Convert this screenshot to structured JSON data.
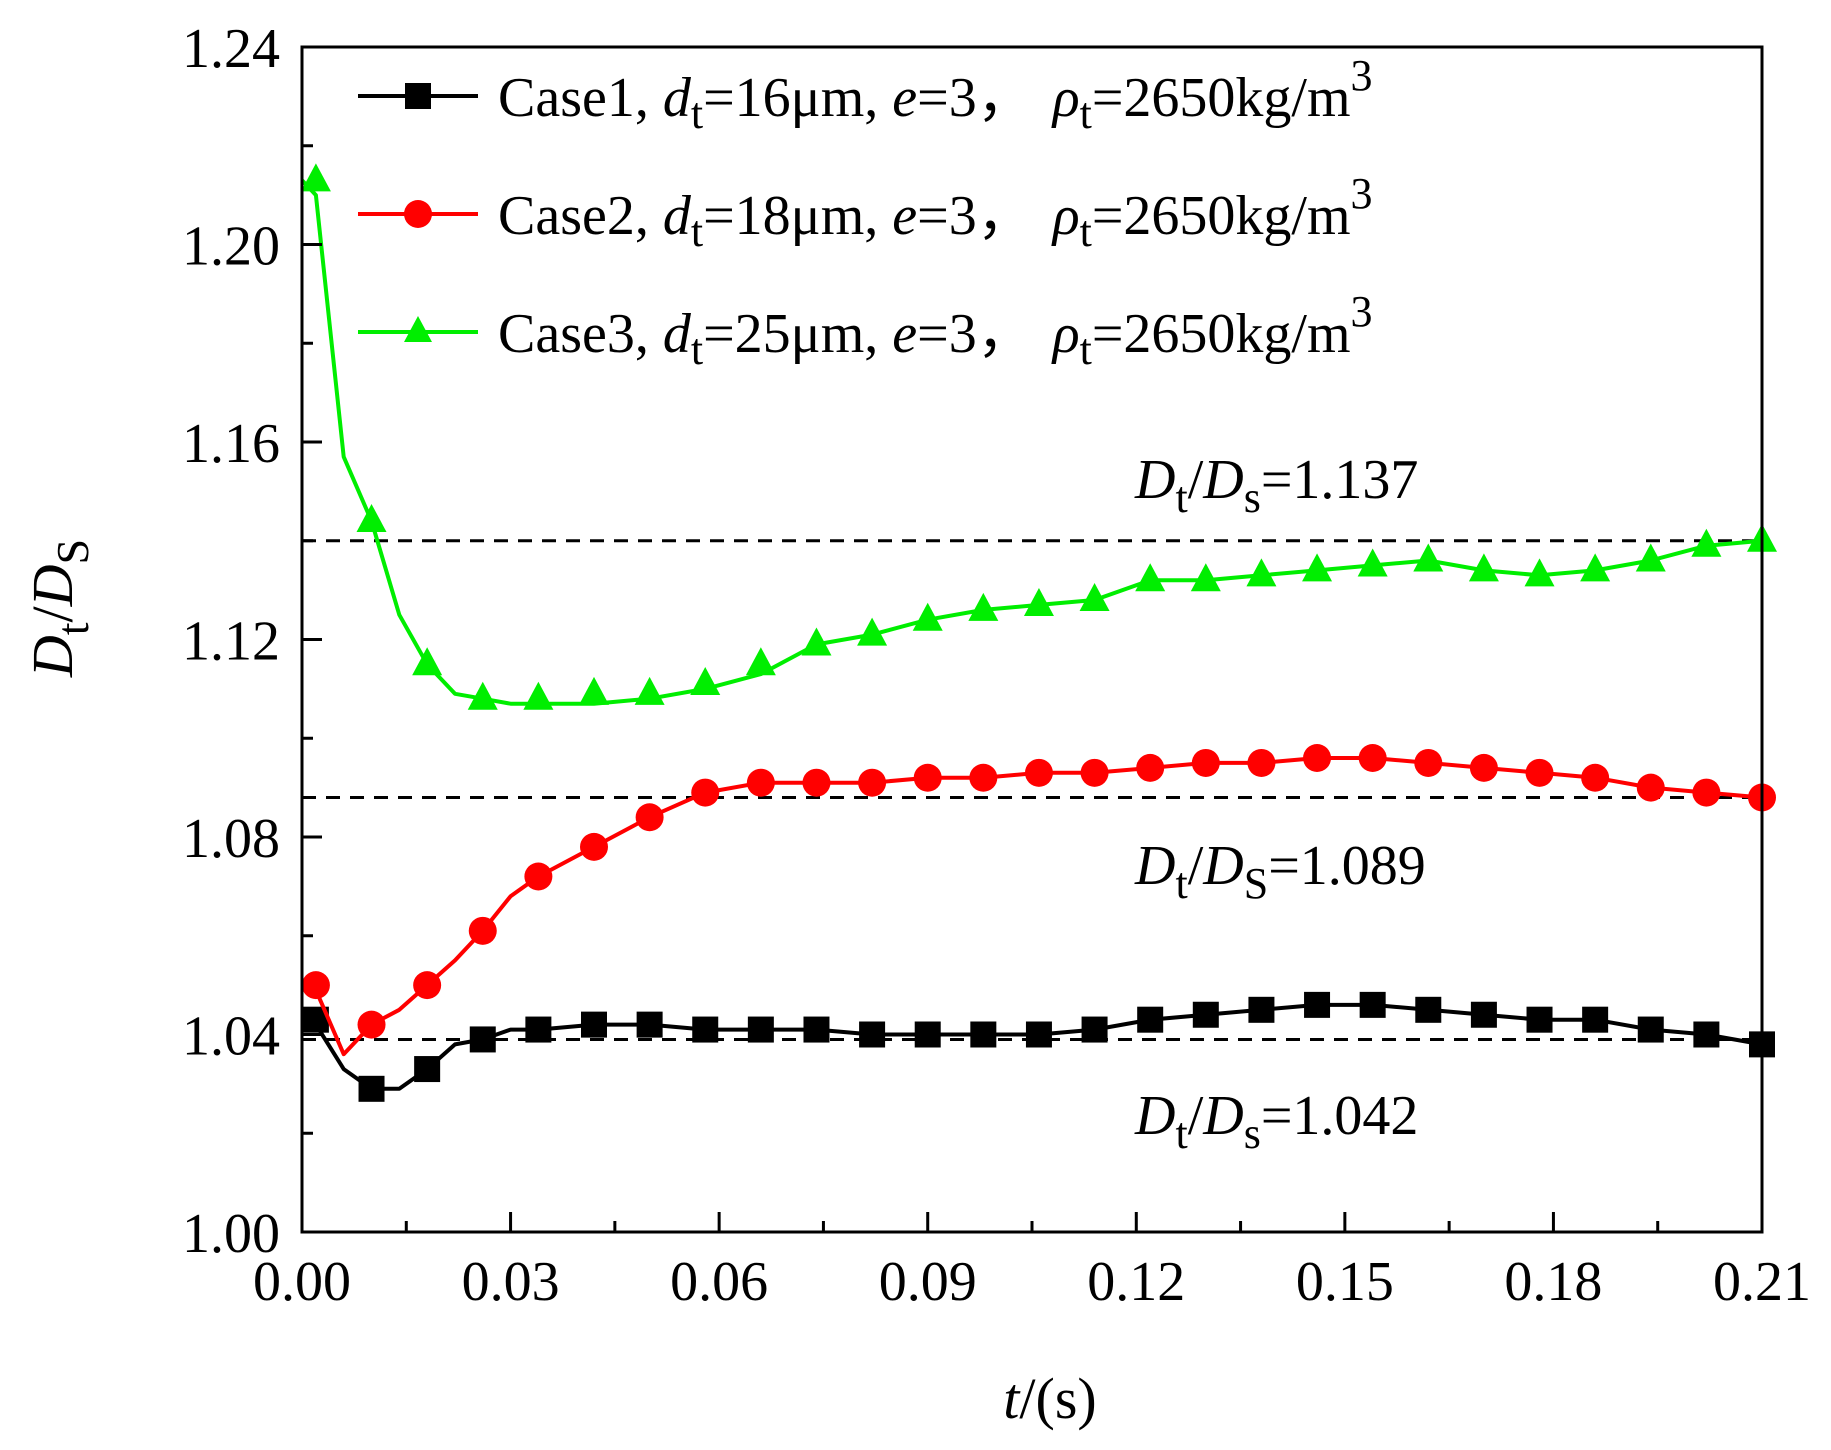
{
  "chart_data": {
    "type": "line",
    "title": "",
    "xlabel": {
      "var": "t",
      "rest": "/(s)"
    },
    "ylabel": {
      "main": "D",
      "sub": "t",
      "slash": "/",
      "main2": "D",
      "sub2": "S"
    },
    "xlim": [
      0.0,
      0.21
    ],
    "ylim": [
      1.0,
      1.24
    ],
    "xticks": [
      "0.00",
      "0.03",
      "0.06",
      "0.09",
      "0.12",
      "0.15",
      "0.18",
      "0.21"
    ],
    "yticks": [
      "1.00",
      "1.04",
      "1.08",
      "1.12",
      "1.16",
      "1.20",
      "1.24"
    ],
    "legend_position": "top",
    "series": [
      {
        "name": "Case1",
        "legend": {
          "case": "Case1, ",
          "d": "d",
          "dsub": "t",
          "dval": "=16μm, ",
          "e": "e",
          "eval": "=3，",
          "rho": "ρ",
          "rhosub": "t",
          "rhoval": "=2650kg/m",
          "sup": "3"
        },
        "color": "#000000",
        "marker": "square",
        "x": [
          0.002,
          0.01,
          0.018,
          0.026,
          0.034,
          0.042,
          0.05,
          0.058,
          0.066,
          0.074,
          0.082,
          0.09,
          0.098,
          0.106,
          0.114,
          0.122,
          0.13,
          0.138,
          0.146,
          0.154,
          0.162,
          0.17,
          0.178,
          0.186,
          0.194,
          0.202,
          0.21
        ],
        "values": [
          1.043,
          1.029,
          1.033,
          1.039,
          1.041,
          1.042,
          1.042,
          1.041,
          1.041,
          1.041,
          1.04,
          1.04,
          1.04,
          1.04,
          1.041,
          1.043,
          1.044,
          1.045,
          1.046,
          1.046,
          1.045,
          1.044,
          1.043,
          1.043,
          1.041,
          1.04,
          1.038
        ],
        "line_x": [
          0.0,
          0.002,
          0.006,
          0.01,
          0.014,
          0.018,
          0.022,
          0.026,
          0.03,
          0.034,
          0.042,
          0.05,
          0.058,
          0.066,
          0.074,
          0.082,
          0.09,
          0.098,
          0.106,
          0.114,
          0.122,
          0.13,
          0.138,
          0.146,
          0.154,
          0.162,
          0.17,
          0.178,
          0.186,
          0.194,
          0.202,
          0.21
        ],
        "line_y": [
          1.043,
          1.042,
          1.033,
          1.029,
          1.029,
          1.033,
          1.038,
          1.039,
          1.041,
          1.041,
          1.042,
          1.042,
          1.041,
          1.041,
          1.041,
          1.04,
          1.04,
          1.04,
          1.04,
          1.041,
          1.043,
          1.044,
          1.045,
          1.046,
          1.046,
          1.045,
          1.044,
          1.043,
          1.043,
          1.041,
          1.04,
          1.038
        ]
      },
      {
        "name": "Case2",
        "legend": {
          "case": "Case2, ",
          "d": "d",
          "dsub": "t",
          "dval": "=18μm, ",
          "e": "e",
          "eval": "=3，",
          "rho": "ρ",
          "rhosub": "t",
          "rhoval": "=2650kg/m",
          "sup": "3"
        },
        "color": "#ff0000",
        "marker": "circle",
        "x": [
          0.002,
          0.01,
          0.018,
          0.026,
          0.034,
          0.042,
          0.05,
          0.058,
          0.066,
          0.074,
          0.082,
          0.09,
          0.098,
          0.106,
          0.114,
          0.122,
          0.13,
          0.138,
          0.146,
          0.154,
          0.162,
          0.17,
          0.178,
          0.186,
          0.194,
          0.202,
          0.21
        ],
        "values": [
          1.05,
          1.042,
          1.05,
          1.061,
          1.072,
          1.078,
          1.084,
          1.089,
          1.091,
          1.091,
          1.091,
          1.092,
          1.092,
          1.093,
          1.093,
          1.094,
          1.095,
          1.095,
          1.096,
          1.096,
          1.095,
          1.094,
          1.093,
          1.092,
          1.09,
          1.089,
          1.088
        ],
        "line_x": [
          0.0,
          0.002,
          0.006,
          0.01,
          0.014,
          0.018,
          0.022,
          0.026,
          0.03,
          0.034,
          0.042,
          0.05,
          0.058,
          0.066,
          0.074,
          0.082,
          0.09,
          0.098,
          0.106,
          0.114,
          0.122,
          0.13,
          0.138,
          0.146,
          0.154,
          0.162,
          0.17,
          0.178,
          0.186,
          0.194,
          0.202,
          0.21
        ],
        "line_y": [
          1.05,
          1.049,
          1.036,
          1.042,
          1.045,
          1.05,
          1.055,
          1.061,
          1.068,
          1.072,
          1.078,
          1.084,
          1.089,
          1.091,
          1.091,
          1.091,
          1.092,
          1.092,
          1.093,
          1.093,
          1.094,
          1.095,
          1.095,
          1.096,
          1.096,
          1.095,
          1.094,
          1.093,
          1.092,
          1.09,
          1.089,
          1.088
        ]
      },
      {
        "name": "Case3",
        "legend": {
          "case": "Case3, ",
          "d": "d",
          "dsub": "t",
          "dval": "=25μm, ",
          "e": "e",
          "eval": "=3，",
          "rho": "ρ",
          "rhosub": "t",
          "rhoval": "=2650kg/m",
          "sup": "3"
        },
        "color": "#00ee00",
        "marker": "triangle",
        "x": [
          0.002,
          0.01,
          0.018,
          0.026,
          0.034,
          0.042,
          0.05,
          0.058,
          0.066,
          0.074,
          0.082,
          0.09,
          0.098,
          0.106,
          0.114,
          0.122,
          0.13,
          0.138,
          0.146,
          0.154,
          0.162,
          0.17,
          0.178,
          0.186,
          0.194,
          0.202,
          0.21
        ],
        "values": [
          1.213,
          1.144,
          1.115,
          1.108,
          1.108,
          1.109,
          1.109,
          1.111,
          1.115,
          1.119,
          1.121,
          1.124,
          1.126,
          1.127,
          1.128,
          1.132,
          1.132,
          1.133,
          1.134,
          1.135,
          1.136,
          1.134,
          1.133,
          1.134,
          1.136,
          1.139,
          1.14
        ],
        "line_x": [
          0.0,
          0.002,
          0.006,
          0.01,
          0.014,
          0.018,
          0.022,
          0.026,
          0.03,
          0.034,
          0.042,
          0.05,
          0.058,
          0.066,
          0.074,
          0.082,
          0.09,
          0.098,
          0.106,
          0.114,
          0.122,
          0.13,
          0.138,
          0.146,
          0.154,
          0.162,
          0.17,
          0.178,
          0.186,
          0.194,
          0.202,
          0.21
        ],
        "line_y": [
          1.213,
          1.21,
          1.157,
          1.144,
          1.125,
          1.115,
          1.109,
          1.108,
          1.107,
          1.107,
          1.107,
          1.108,
          1.11,
          1.113,
          1.119,
          1.121,
          1.124,
          1.126,
          1.127,
          1.128,
          1.132,
          1.132,
          1.133,
          1.134,
          1.135,
          1.136,
          1.134,
          1.133,
          1.134,
          1.136,
          1.139,
          1.14
        ]
      }
    ],
    "reference_lines": [
      {
        "y": 1.14,
        "label": {
          "D": "D",
          "t": "t",
          "slash": "/",
          "D2": "D",
          "s": "s",
          "val": "=1.137"
        },
        "label_pos": "above"
      },
      {
        "y": 1.088,
        "label": {
          "D": "D",
          "t": "t",
          "slash": "/",
          "D2": "D",
          "s": "S",
          "val": "=1.089"
        },
        "label_pos": "below"
      },
      {
        "y": 1.039,
        "label": {
          "D": "D",
          "t": "t",
          "slash": "/",
          "D2": "D",
          "s": "s",
          "val": "=1.042"
        },
        "label_pos": "below"
      }
    ]
  }
}
